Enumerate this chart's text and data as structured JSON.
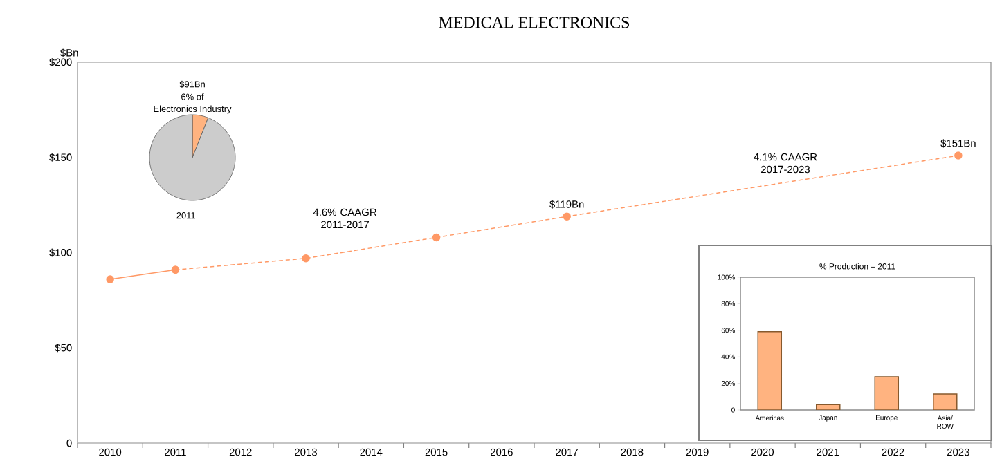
{
  "chart_data": [
    {
      "type": "line",
      "title": "MEDICAL ELECTRONICS",
      "ylabel": "$Bn",
      "categories": [
        "2010",
        "2011",
        "2012",
        "2013",
        "2014",
        "2015",
        "2016",
        "2017",
        "2018",
        "2019",
        "2020",
        "2021",
        "2022",
        "2023"
      ],
      "series": [
        {
          "color": "#ff9966",
          "line_style": "solid",
          "values": [
            86,
            91,
            null,
            null,
            null,
            null,
            null,
            null,
            null,
            null,
            null,
            null,
            null,
            null
          ]
        },
        {
          "color": "#ff9966",
          "line_style": "dashed",
          "values": [
            null,
            91,
            null,
            97,
            null,
            108,
            null,
            119,
            null,
            null,
            null,
            null,
            null,
            151
          ]
        }
      ],
      "marker": "circle",
      "ylim": [
        0,
        200
      ],
      "yticks": [
        0,
        {
          "value": 50,
          "label": "$50"
        },
        {
          "value": 100,
          "label": "$100"
        },
        {
          "value": 150,
          "label": "$150"
        },
        {
          "value": 200,
          "label": "$200"
        }
      ],
      "annotations": [
        "4.6% CAAGR 2011-2017",
        "4.1% CAAGR 2017-2023",
        {
          "text": "$119Bn",
          "x": "2017",
          "y": 119
        },
        {
          "text": "$151Bn",
          "x": "2023",
          "y": 151
        }
      ]
    },
    {
      "type": "pie",
      "categories": [
        null,
        null
      ],
      "values": [
        6,
        94
      ],
      "colors": [
        "#ffb380",
        "#cccccc"
      ],
      "annotations": [
        "$91Bn",
        "6% of",
        "Electronics Industry",
        "2011"
      ]
    },
    {
      "type": "bar",
      "title": "% Production – 2011",
      "categories": [
        "Americas",
        "Japan",
        "Europe",
        "Asia/ ROW"
      ],
      "values": [
        59,
        4,
        25,
        12
      ],
      "color": "#ffb380",
      "ylim": [
        0,
        100
      ],
      "yticks": [
        0,
        {
          "value": 20,
          "label": "20%"
        },
        {
          "value": 40,
          "label": "40%"
        },
        {
          "value": 60,
          "label": "60%"
        },
        {
          "value": 80,
          "label": "80%"
        },
        {
          "value": 100,
          "label": "100%"
        }
      ]
    }
  ]
}
